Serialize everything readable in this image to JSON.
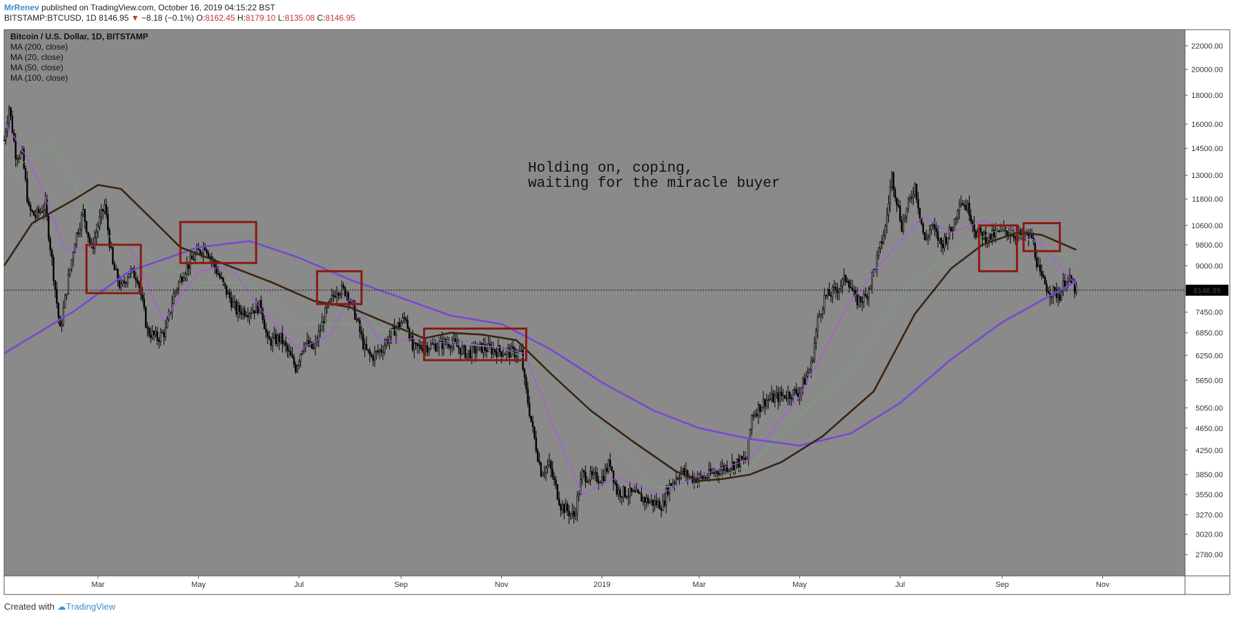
{
  "header": {
    "author": "MrRenev",
    "published": "published on TradingView.com, October 16, 2019 04:15:22 BST",
    "symbol": "BITSTAMP:BTCUSD, 1D",
    "last": "8146.95",
    "change": "−8.18 (−0.1%)",
    "o_label": "O:",
    "o": "8162.45",
    "h_label": "H:",
    "h": "8179.10",
    "l_label": "L:",
    "l": "8135.08",
    "c_label": "C:",
    "c": "8146.95"
  },
  "footer": {
    "created": "Created with",
    "brand": "TradingView"
  },
  "chart_data": {
    "type": "line",
    "title": "Bitcoin / U.S. Dollar, 1D, BITSTAMP",
    "legend": [
      "MA (200, close)",
      "MA (20, close)",
      "MA (50, close)",
      "MA (100, close)"
    ],
    "legend_placement": "top-left",
    "annotation": [
      "Holding on, coping,",
      "waiting for the miracle buyer"
    ],
    "last_price_label": "8146.95",
    "last_price": 8146.95,
    "y_scale": "log",
    "ylim": [
      2550,
      23500
    ],
    "y_ticks": [
      "22000.00",
      "20000.00",
      "18000.00",
      "16000.00",
      "14500.00",
      "13000.00",
      "11800.00",
      "10600.00",
      "9800.00",
      "9000.00",
      "7450.00",
      "6850.00",
      "6250.00",
      "5650.00",
      "5050.00",
      "4650.00",
      "4250.00",
      "3850.00",
      "3550.00",
      "3270.00",
      "3020.00",
      "2780.00"
    ],
    "x_ticks": [
      "Mar",
      "May",
      "Jul",
      "Sep",
      "Nov",
      "2019",
      "Mar",
      "May",
      "Jul",
      "Sep",
      "Nov"
    ],
    "x_tick_dates": [
      "2018-03-01",
      "2018-05-01",
      "2018-07-01",
      "2018-09-01",
      "2018-11-01",
      "2019-01-01",
      "2019-03-01",
      "2019-05-01",
      "2019-07-01",
      "2019-09-01",
      "2019-11-01"
    ],
    "xlim": [
      "2018-01-03",
      "2019-12-21"
    ],
    "grid": false,
    "colors": {
      "background": "#8a8a8a",
      "candles": "#000000",
      "ma200": "#7b46d6",
      "ma100": "#3b2410",
      "ma50": "#6fae6f",
      "ma20": "#b24df0",
      "boxes": "#8b1a10"
    },
    "price_path": [
      [
        "2018-01-03",
        15000
      ],
      [
        "2018-01-06",
        17200
      ],
      [
        "2018-01-10",
        14200
      ],
      [
        "2018-01-14",
        14100
      ],
      [
        "2018-01-18",
        11300
      ],
      [
        "2018-01-22",
        11000
      ],
      [
        "2018-01-28",
        11500
      ],
      [
        "2018-02-01",
        9200
      ],
      [
        "2018-02-06",
        6900
      ],
      [
        "2018-02-10",
        8200
      ],
      [
        "2018-02-15",
        10000
      ],
      [
        "2018-02-20",
        11200
      ],
      [
        "2018-02-25",
        9600
      ],
      [
        "2018-03-01",
        10600
      ],
      [
        "2018-03-05",
        11500
      ],
      [
        "2018-03-10",
        9000
      ],
      [
        "2018-03-15",
        8200
      ],
      [
        "2018-03-20",
        8800
      ],
      [
        "2018-03-25",
        8600
      ],
      [
        "2018-03-31",
        6900
      ],
      [
        "2018-04-06",
        6700
      ],
      [
        "2018-04-11",
        6900
      ],
      [
        "2018-04-16",
        8000
      ],
      [
        "2018-04-22",
        8800
      ],
      [
        "2018-04-28",
        9300
      ],
      [
        "2018-05-05",
        9800
      ],
      [
        "2018-05-10",
        9100
      ],
      [
        "2018-05-17",
        8200
      ],
      [
        "2018-05-24",
        7500
      ],
      [
        "2018-06-01",
        7500
      ],
      [
        "2018-06-08",
        7650
      ],
      [
        "2018-06-12",
        6600
      ],
      [
        "2018-06-20",
        6700
      ],
      [
        "2018-06-29",
        5950
      ],
      [
        "2018-07-04",
        6600
      ],
      [
        "2018-07-10",
        6400
      ],
      [
        "2018-07-17",
        7400
      ],
      [
        "2018-07-24",
        8200
      ],
      [
        "2018-07-30",
        8100
      ],
      [
        "2018-08-04",
        7400
      ],
      [
        "2018-08-10",
        6400
      ],
      [
        "2018-08-14",
        6200
      ],
      [
        "2018-08-20",
        6400
      ],
      [
        "2018-08-27",
        6900
      ],
      [
        "2018-09-04",
        7300
      ],
      [
        "2018-09-08",
        6400
      ],
      [
        "2018-09-15",
        6500
      ],
      [
        "2018-09-20",
        6500
      ],
      [
        "2018-10-01",
        6600
      ],
      [
        "2018-10-11",
        6300
      ],
      [
        "2018-10-20",
        6450
      ],
      [
        "2018-11-01",
        6350
      ],
      [
        "2018-11-13",
        6300
      ],
      [
        "2018-11-15",
        5600
      ],
      [
        "2018-11-20",
        4600
      ],
      [
        "2018-11-25",
        3900
      ],
      [
        "2018-11-30",
        4000
      ],
      [
        "2018-12-07",
        3400
      ],
      [
        "2018-12-15",
        3250
      ],
      [
        "2018-12-20",
        3850
      ],
      [
        "2018-12-26",
        3800
      ],
      [
        "2019-01-01",
        3800
      ],
      [
        "2019-01-06",
        4050
      ],
      [
        "2019-01-10",
        3600
      ],
      [
        "2019-01-20",
        3550
      ],
      [
        "2019-01-30",
        3450
      ],
      [
        "2019-02-07",
        3400
      ],
      [
        "2019-02-10",
        3650
      ],
      [
        "2019-02-18",
        3900
      ],
      [
        "2019-02-24",
        3800
      ],
      [
        "2019-03-04",
        3800
      ],
      [
        "2019-03-15",
        3950
      ],
      [
        "2019-03-30",
        4100
      ],
      [
        "2019-04-02",
        4900
      ],
      [
        "2019-04-10",
        5200
      ],
      [
        "2019-04-20",
        5300
      ],
      [
        "2019-05-01",
        5400
      ],
      [
        "2019-05-08",
        6000
      ],
      [
        "2019-05-12",
        7200
      ],
      [
        "2019-05-16",
        7900
      ],
      [
        "2019-05-22",
        8100
      ],
      [
        "2019-05-30",
        8600
      ],
      [
        "2019-06-04",
        7800
      ],
      [
        "2019-06-10",
        7900
      ],
      [
        "2019-06-16",
        9000
      ],
      [
        "2019-06-22",
        10500
      ],
      [
        "2019-06-26",
        13000
      ],
      [
        "2019-07-02",
        10600
      ],
      [
        "2019-07-10",
        12500
      ],
      [
        "2019-07-16",
        9900
      ],
      [
        "2019-07-20",
        10600
      ],
      [
        "2019-07-26",
        9800
      ],
      [
        "2019-08-02",
        10500
      ],
      [
        "2019-08-06",
        11800
      ],
      [
        "2019-08-12",
        11300
      ],
      [
        "2019-08-16",
        10300
      ],
      [
        "2019-08-24",
        10100
      ],
      [
        "2019-09-02",
        10400
      ],
      [
        "2019-09-10",
        10200
      ],
      [
        "2019-09-19",
        10100
      ],
      [
        "2019-09-24",
        8600
      ],
      [
        "2019-09-30",
        8100
      ],
      [
        "2019-10-06",
        8000
      ],
      [
        "2019-10-10",
        8600
      ],
      [
        "2019-10-16",
        8146.95
      ]
    ],
    "series": [
      {
        "name": "MA (200, close)",
        "points": [
          [
            "2018-01-03",
            6300
          ],
          [
            "2018-02-15",
            7500
          ],
          [
            "2018-03-20",
            8800
          ],
          [
            "2018-05-01",
            9700
          ],
          [
            "2018-06-01",
            9950
          ],
          [
            "2018-07-01",
            9300
          ],
          [
            "2018-08-01",
            8500
          ],
          [
            "2018-09-01",
            7900
          ],
          [
            "2018-10-01",
            7350
          ],
          [
            "2018-11-01",
            7100
          ],
          [
            "2018-12-01",
            6400
          ],
          [
            "2019-01-01",
            5600
          ],
          [
            "2019-02-01",
            5000
          ],
          [
            "2019-03-01",
            4650
          ],
          [
            "2019-04-01",
            4450
          ],
          [
            "2019-05-01",
            4330
          ],
          [
            "2019-06-01",
            4550
          ],
          [
            "2019-07-01",
            5150
          ],
          [
            "2019-08-01",
            6150
          ],
          [
            "2019-09-01",
            7150
          ],
          [
            "2019-10-16",
            8450
          ]
        ]
      },
      {
        "name": "MA (20, close)",
        "points": [
          [
            "2018-01-03",
            16200
          ],
          [
            "2018-01-20",
            13500
          ],
          [
            "2018-02-10",
            9500
          ],
          [
            "2018-03-01",
            9800
          ],
          [
            "2018-03-20",
            9800
          ],
          [
            "2018-04-10",
            7200
          ],
          [
            "2018-05-01",
            8800
          ],
          [
            "2018-05-20",
            9000
          ],
          [
            "2018-06-10",
            7400
          ],
          [
            "2018-07-01",
            6400
          ],
          [
            "2018-07-20",
            6800
          ],
          [
            "2018-08-01",
            7900
          ],
          [
            "2018-08-20",
            6600
          ],
          [
            "2018-09-10",
            6700
          ],
          [
            "2018-10-01",
            6550
          ],
          [
            "2018-11-01",
            6450
          ],
          [
            "2018-11-15",
            6300
          ],
          [
            "2018-12-01",
            4800
          ],
          [
            "2018-12-20",
            3550
          ],
          [
            "2019-01-10",
            3800
          ],
          [
            "2019-02-05",
            3550
          ],
          [
            "2019-03-01",
            3830
          ],
          [
            "2019-04-01",
            4100
          ],
          [
            "2019-05-01",
            5300
          ],
          [
            "2019-06-01",
            7800
          ],
          [
            "2019-06-25",
            9500
          ],
          [
            "2019-07-15",
            11000
          ],
          [
            "2019-08-01",
            10300
          ],
          [
            "2019-08-20",
            10800
          ],
          [
            "2019-09-10",
            10400
          ],
          [
            "2019-09-25",
            9800
          ],
          [
            "2019-10-16",
            8300
          ]
        ]
      },
      {
        "name": "MA (50, close)",
        "points": [
          [
            "2018-01-03",
            13000
          ],
          [
            "2018-02-01",
            14800
          ],
          [
            "2018-03-01",
            10400
          ],
          [
            "2018-04-01",
            9300
          ],
          [
            "2018-05-01",
            8400
          ],
          [
            "2018-06-01",
            8400
          ],
          [
            "2018-07-01",
            7100
          ],
          [
            "2018-08-01",
            7100
          ],
          [
            "2018-09-01",
            6900
          ],
          [
            "2018-10-01",
            6600
          ],
          [
            "2018-11-01",
            6450
          ],
          [
            "2018-12-01",
            5900
          ],
          [
            "2019-01-01",
            4700
          ],
          [
            "2019-02-01",
            3650
          ],
          [
            "2019-03-01",
            3700
          ],
          [
            "2019-04-01",
            4000
          ],
          [
            "2019-05-01",
            4900
          ],
          [
            "2019-06-01",
            5900
          ],
          [
            "2019-07-01",
            8000
          ],
          [
            "2019-08-01",
            9500
          ],
          [
            "2019-09-01",
            10500
          ],
          [
            "2019-10-16",
            9200
          ]
        ]
      },
      {
        "name": "MA (100, close)",
        "points": [
          [
            "2018-01-03",
            9000
          ],
          [
            "2018-01-20",
            10700
          ],
          [
            "2018-02-15",
            11800
          ],
          [
            "2018-03-01",
            12500
          ],
          [
            "2018-03-15",
            12300
          ],
          [
            "2018-04-01",
            11000
          ],
          [
            "2018-04-20",
            9700
          ],
          [
            "2018-05-15",
            9100
          ],
          [
            "2018-06-15",
            8400
          ],
          [
            "2018-07-10",
            7800
          ],
          [
            "2018-08-01",
            7600
          ],
          [
            "2018-08-20",
            7200
          ],
          [
            "2018-09-15",
            6700
          ],
          [
            "2018-10-01",
            6850
          ],
          [
            "2018-10-20",
            6800
          ],
          [
            "2018-11-10",
            6650
          ],
          [
            "2018-12-01",
            5800
          ],
          [
            "2018-12-25",
            5000
          ],
          [
            "2019-01-20",
            4400
          ],
          [
            "2019-02-15",
            3900
          ],
          [
            "2019-03-01",
            3750
          ],
          [
            "2019-03-15",
            3780
          ],
          [
            "2019-04-01",
            3850
          ],
          [
            "2019-04-20",
            4050
          ],
          [
            "2019-05-15",
            4500
          ],
          [
            "2019-06-15",
            5400
          ],
          [
            "2019-07-10",
            7400
          ],
          [
            "2019-08-01",
            8900
          ],
          [
            "2019-08-20",
            9800
          ],
          [
            "2019-09-10",
            10300
          ],
          [
            "2019-09-25",
            10200
          ],
          [
            "2019-10-16",
            9600
          ]
        ]
      }
    ],
    "boxes": [
      {
        "start": "2018-02-22",
        "end": "2018-03-27",
        "high": 9800,
        "low": 8050
      },
      {
        "start": "2018-04-20",
        "end": "2018-06-05",
        "high": 10750,
        "low": 9100
      },
      {
        "start": "2018-07-12",
        "end": "2018-08-08",
        "high": 8800,
        "low": 7700
      },
      {
        "start": "2018-09-15",
        "end": "2018-11-16",
        "high": 6970,
        "low": 6130
      },
      {
        "start": "2019-08-18",
        "end": "2019-09-10",
        "high": 10600,
        "low": 8800
      },
      {
        "start": "2019-09-14",
        "end": "2019-10-06",
        "high": 10700,
        "low": 9550
      }
    ]
  }
}
